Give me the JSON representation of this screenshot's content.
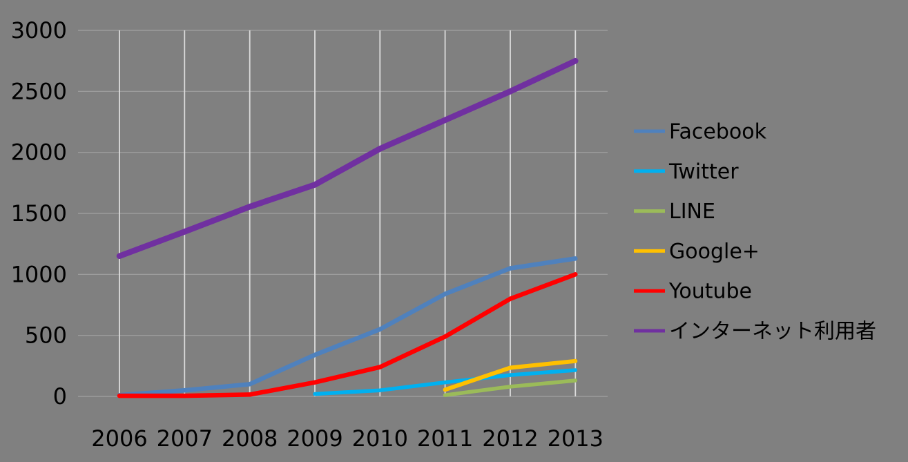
{
  "chart_data": {
    "type": "line",
    "title": "",
    "xlabel": "",
    "ylabel": "",
    "categories": [
      "2006",
      "2007",
      "2008",
      "2009",
      "2010",
      "2011",
      "2012",
      "2013"
    ],
    "series": [
      {
        "key": "facebook",
        "name": "Facebook",
        "color": "#4F81BD",
        "width": 6.5,
        "values": [
          10,
          50,
          100,
          340,
          550,
          840,
          1050,
          1130
        ]
      },
      {
        "key": "twitter",
        "name": "Twitter",
        "color": "#00B0F0",
        "width": 5.5,
        "values": [
          null,
          null,
          null,
          20,
          50,
          115,
          175,
          215
        ]
      },
      {
        "key": "line",
        "name": "LINE",
        "color": "#9BBB59",
        "width": 5.5,
        "values": [
          null,
          null,
          null,
          null,
          null,
          10,
          80,
          130
        ]
      },
      {
        "key": "google-plus",
        "name": "Google+",
        "color": "#FFC000",
        "width": 6,
        "values": [
          null,
          null,
          null,
          null,
          null,
          55,
          235,
          290
        ]
      },
      {
        "key": "youtube",
        "name": "Youtube",
        "color": "#FF0000",
        "width": 6.5,
        "values": [
          5,
          5,
          15,
          115,
          240,
          490,
          800,
          1000
        ]
      },
      {
        "key": "internet-users",
        "name": "インターネット利用者",
        "color": "#7030A0",
        "width": 8.5,
        "values": [
          1150,
          1350,
          1555,
          1735,
          2030,
          2265,
          2500,
          2750
        ]
      }
    ],
    "ylim": [
      0,
      3000
    ],
    "ytick_step": 500,
    "yticks": [
      "0",
      "500",
      "1000",
      "1500",
      "2000",
      "2500",
      "3000"
    ],
    "grid": "horizontal+vertical",
    "legend_position": "right",
    "colors": {
      "background": "#808080",
      "vertical_gridline": "#DCDCDC",
      "horizontal_gridline": "#9C9C9C",
      "text": "#000000"
    }
  }
}
